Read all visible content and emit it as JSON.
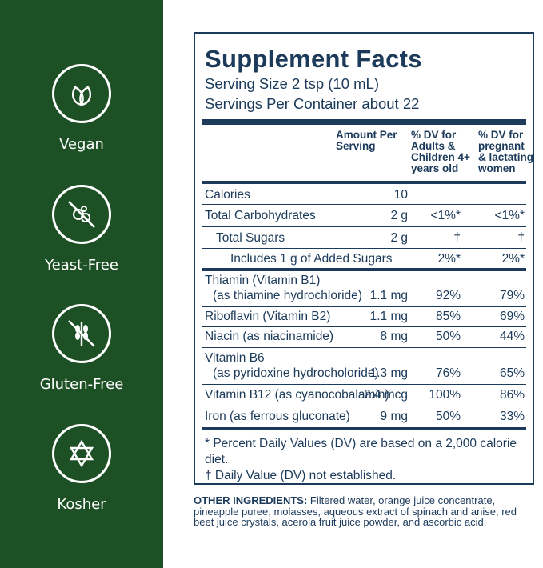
{
  "badges": [
    {
      "label": "Vegan",
      "icon": "leaves-icon"
    },
    {
      "label": "Yeast-Free",
      "icon": "no-yeast-icon"
    },
    {
      "label": "Gluten-Free",
      "icon": "no-wheat-icon"
    },
    {
      "label": "Kosher",
      "icon": "star-of-david-icon"
    }
  ],
  "facts": {
    "title": "Supplement Facts",
    "serving_size": "Serving Size 2 tsp (10 mL)",
    "servings_per_container": "Servings Per Container about 22",
    "headers": {
      "amount": "Amount Per Serving",
      "dv_adults": "% DV for Adults & Children 4+ years old",
      "dv_pregnant": "% DV for pregnant & lactating women"
    },
    "rows": [
      {
        "name": "Calories",
        "amount": "10",
        "dv1": "",
        "dv2": ""
      },
      {
        "name": "Total Carbohydrates",
        "amount": "2 g",
        "dv1": "<1%*",
        "dv2": "<1%*"
      },
      {
        "name": "Total Sugars",
        "amount": "2 g",
        "dv1": "†",
        "dv2": "†"
      },
      {
        "name": "Includes 1 g of Added Sugars",
        "amount": "",
        "dv1": "2%*",
        "dv2": "2%*"
      },
      {
        "name": "Thiamin (Vitamin B1)",
        "name2": "(as thiamine hydrochloride)",
        "amount": "1.1 mg",
        "dv1": "92%",
        "dv2": "79%"
      },
      {
        "name": "Riboflavin (Vitamin B2)",
        "amount": "1.1 mg",
        "dv1": "85%",
        "dv2": "69%"
      },
      {
        "name": "Niacin (as niacinamide)",
        "amount": "8 mg",
        "dv1": "50%",
        "dv2": "44%"
      },
      {
        "name": "Vitamin B6",
        "name2": "(as pyridoxine hydrocholoride)",
        "amount": "1.3 mg",
        "dv1": "76%",
        "dv2": "65%"
      },
      {
        "name": "Vitamin B12 (as cyanocobalamin)",
        "amount": "2.4 mcg",
        "dv1": "100%",
        "dv2": "86%"
      },
      {
        "name": "Iron (as ferrous gluconate)",
        "amount": "9 mg",
        "dv1": "50%",
        "dv2": "33%"
      }
    ],
    "footnote1": "* Percent Daily Values (DV) are based on a 2,000 calorie diet.",
    "footnote2": "† Daily Value (DV) not established."
  },
  "ingredients": {
    "label": "OTHER INGREDIENTS:",
    "text": "Filtered water, orange juice concentrate, pineapple puree, molasses, aqueous extract of spinach and anise, red beet juice crystals, acerola fruit juice powder, and ascorbic acid."
  }
}
